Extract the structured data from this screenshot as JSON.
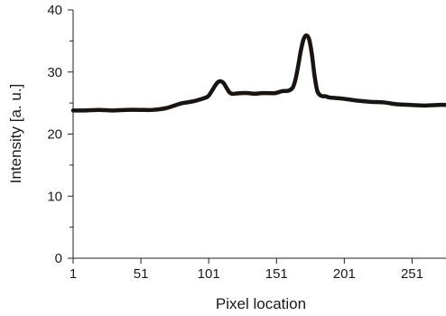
{
  "chart_data": {
    "type": "line",
    "title": "",
    "xlabel": "Pixel location",
    "ylabel": "Intensity [a. u.]",
    "xlim": [
      1,
      276
    ],
    "ylim": [
      0,
      40
    ],
    "x_ticks": [
      1,
      51,
      101,
      151,
      201,
      251
    ],
    "y_ticks": [
      0,
      10,
      20,
      30,
      40
    ],
    "y_minor_ticks": [
      5,
      15,
      25,
      35
    ],
    "grid": false,
    "legend": "none",
    "line_color": "#1a1410",
    "series": [
      {
        "x": [
          1,
          10,
          20,
          30,
          40,
          50,
          60,
          70,
          80,
          85,
          90,
          95,
          100,
          102,
          104,
          106,
          108,
          110,
          112,
          114,
          116,
          118,
          120,
          125,
          130,
          135,
          140,
          145,
          150,
          155,
          160,
          163,
          165,
          167,
          169,
          171,
          173,
          175,
          177,
          179,
          181,
          183,
          185,
          187,
          190,
          195,
          200,
          210,
          220,
          230,
          240,
          250,
          260,
          270,
          276
        ],
        "y": [
          23.8,
          23.8,
          23.9,
          23.8,
          23.9,
          23.9,
          23.9,
          24.2,
          24.9,
          25.1,
          25.3,
          25.6,
          26.0,
          26.5,
          27.2,
          27.9,
          28.4,
          28.5,
          28.2,
          27.5,
          26.8,
          26.5,
          26.5,
          26.6,
          26.6,
          26.5,
          26.6,
          26.6,
          26.6,
          26.9,
          27.0,
          27.5,
          28.8,
          31.0,
          33.5,
          35.3,
          35.9,
          35.3,
          33.0,
          29.5,
          27.0,
          26.3,
          26.1,
          26.1,
          25.9,
          25.8,
          25.7,
          25.4,
          25.2,
          25.1,
          24.8,
          24.7,
          24.6,
          24.7,
          24.7
        ]
      }
    ]
  }
}
